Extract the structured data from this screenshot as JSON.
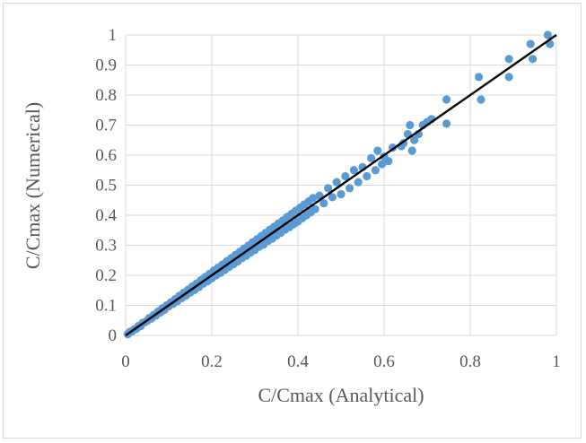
{
  "chart_data": {
    "type": "scatter",
    "title": "",
    "xlabel": "C/Cmax (Analytical)",
    "ylabel": "C/Cmax (Numerical)",
    "xlim": [
      0,
      1
    ],
    "ylim": [
      0,
      1
    ],
    "x_ticks": [
      "0",
      "0.2",
      "0.4",
      "0.6",
      "0.8",
      "1"
    ],
    "y_ticks": [
      "0",
      "0.1",
      "0.2",
      "0.3",
      "0.4",
      "0.5",
      "0.6",
      "0.7",
      "0.8",
      "0.9",
      "1"
    ],
    "grid": true,
    "legend": "none",
    "series": [
      {
        "color": "#5b9bd5",
        "marker": "circle",
        "points": [
          [
            0.005,
            0.004
          ],
          [
            0.01,
            0.012
          ],
          [
            0.015,
            0.013
          ],
          [
            0.02,
            0.02
          ],
          [
            0.025,
            0.022
          ],
          [
            0.03,
            0.032
          ],
          [
            0.035,
            0.031
          ],
          [
            0.04,
            0.042
          ],
          [
            0.045,
            0.044
          ],
          [
            0.05,
            0.048
          ],
          [
            0.055,
            0.058
          ],
          [
            0.06,
            0.056
          ],
          [
            0.065,
            0.068
          ],
          [
            0.07,
            0.066
          ],
          [
            0.075,
            0.079
          ],
          [
            0.08,
            0.076
          ],
          [
            0.085,
            0.09
          ],
          [
            0.09,
            0.085
          ],
          [
            0.095,
            0.1
          ],
          [
            0.1,
            0.097
          ],
          [
            0.105,
            0.11
          ],
          [
            0.11,
            0.105
          ],
          [
            0.115,
            0.121
          ],
          [
            0.12,
            0.114
          ],
          [
            0.125,
            0.132
          ],
          [
            0.13,
            0.124
          ],
          [
            0.135,
            0.142
          ],
          [
            0.14,
            0.133
          ],
          [
            0.145,
            0.152
          ],
          [
            0.15,
            0.143
          ],
          [
            0.155,
            0.163
          ],
          [
            0.16,
            0.151
          ],
          [
            0.165,
            0.173
          ],
          [
            0.17,
            0.161
          ],
          [
            0.175,
            0.184
          ],
          [
            0.18,
            0.172
          ],
          [
            0.185,
            0.195
          ],
          [
            0.19,
            0.18
          ],
          [
            0.195,
            0.205
          ],
          [
            0.2,
            0.19
          ],
          [
            0.205,
            0.216
          ],
          [
            0.21,
            0.2
          ],
          [
            0.215,
            0.226
          ],
          [
            0.22,
            0.208
          ],
          [
            0.225,
            0.236
          ],
          [
            0.23,
            0.218
          ],
          [
            0.235,
            0.247
          ],
          [
            0.24,
            0.228
          ],
          [
            0.245,
            0.257
          ],
          [
            0.25,
            0.237
          ],
          [
            0.255,
            0.268
          ],
          [
            0.26,
            0.246
          ],
          [
            0.265,
            0.278
          ],
          [
            0.27,
            0.257
          ],
          [
            0.275,
            0.289
          ],
          [
            0.28,
            0.265
          ],
          [
            0.285,
            0.299
          ],
          [
            0.29,
            0.276
          ],
          [
            0.295,
            0.31
          ],
          [
            0.3,
            0.284
          ],
          [
            0.305,
            0.32
          ],
          [
            0.31,
            0.295
          ],
          [
            0.315,
            0.331
          ],
          [
            0.32,
            0.302
          ],
          [
            0.325,
            0.341
          ],
          [
            0.33,
            0.314
          ],
          [
            0.335,
            0.352
          ],
          [
            0.34,
            0.322
          ],
          [
            0.345,
            0.362
          ],
          [
            0.35,
            0.332
          ],
          [
            0.355,
            0.373
          ],
          [
            0.36,
            0.341
          ],
          [
            0.365,
            0.383
          ],
          [
            0.37,
            0.352
          ],
          [
            0.375,
            0.394
          ],
          [
            0.38,
            0.36
          ],
          [
            0.385,
            0.404
          ],
          [
            0.39,
            0.37
          ],
          [
            0.395,
            0.415
          ],
          [
            0.4,
            0.379
          ],
          [
            0.405,
            0.425
          ],
          [
            0.41,
            0.39
          ],
          [
            0.415,
            0.436
          ],
          [
            0.42,
            0.4
          ],
          [
            0.425,
            0.446
          ],
          [
            0.43,
            0.41
          ],
          [
            0.435,
            0.457
          ],
          [
            0.44,
            0.42
          ],
          [
            0.45,
            0.465
          ],
          [
            0.46,
            0.44
          ],
          [
            0.47,
            0.49
          ],
          [
            0.48,
            0.46
          ],
          [
            0.49,
            0.51
          ],
          [
            0.5,
            0.47
          ],
          [
            0.51,
            0.53
          ],
          [
            0.52,
            0.49
          ],
          [
            0.53,
            0.55
          ],
          [
            0.54,
            0.51
          ],
          [
            0.55,
            0.56
          ],
          [
            0.56,
            0.53
          ],
          [
            0.57,
            0.59
          ],
          [
            0.58,
            0.55
          ],
          [
            0.585,
            0.615
          ],
          [
            0.595,
            0.57
          ],
          [
            0.6,
            0.595
          ],
          [
            0.61,
            0.58
          ],
          [
            0.62,
            0.625
          ],
          [
            0.64,
            0.63
          ],
          [
            0.645,
            0.64
          ],
          [
            0.655,
            0.67
          ],
          [
            0.66,
            0.7
          ],
          [
            0.665,
            0.615
          ],
          [
            0.67,
            0.65
          ],
          [
            0.68,
            0.67
          ],
          [
            0.69,
            0.7
          ],
          [
            0.7,
            0.71
          ],
          [
            0.71,
            0.72
          ],
          [
            0.745,
            0.785
          ],
          [
            0.745,
            0.705
          ],
          [
            0.82,
            0.86
          ],
          [
            0.825,
            0.785
          ],
          [
            0.89,
            0.92
          ],
          [
            0.89,
            0.86
          ],
          [
            0.94,
            0.97
          ],
          [
            0.945,
            0.92
          ],
          [
            0.98,
            1.0
          ],
          [
            0.985,
            0.97
          ]
        ]
      }
    ],
    "trendline": {
      "color": "#000000",
      "x": [
        0,
        1
      ],
      "y": [
        0,
        1
      ]
    }
  }
}
